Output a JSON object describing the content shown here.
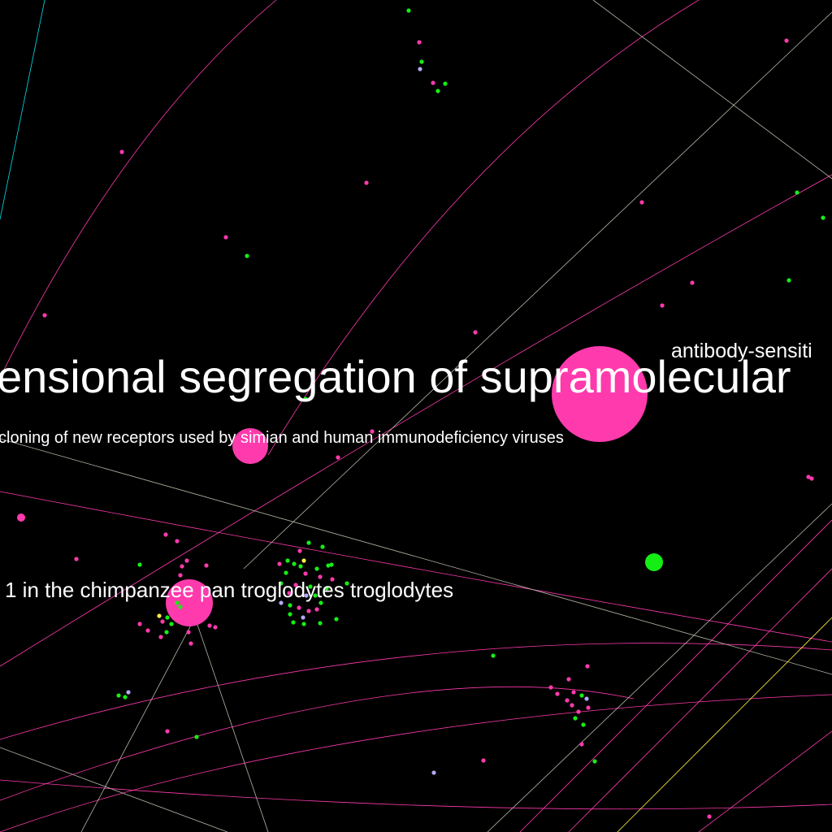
{
  "colors": {
    "background": "#000000",
    "pink": "#ff3aad",
    "green": "#15ee15",
    "lavender": "#b4a8f0",
    "cyan": "#00e0f0",
    "yellow": "#ffee44",
    "gray_edge": "#b8b8a8",
    "label": "#ffffff"
  },
  "labels": [
    {
      "id": "label-segregation",
      "text": "ensional segregation of supramolecular"
    },
    {
      "id": "label-antibody",
      "text": "antibody-sensiti"
    },
    {
      "id": "label-cloning",
      "text": "cloning of new receptors used by simian and human immunodeficiency viruses"
    },
    {
      "id": "label-chimpanzee",
      "text": "1 in the chimpanzee pan troglodytes troglodytes"
    }
  ]
}
